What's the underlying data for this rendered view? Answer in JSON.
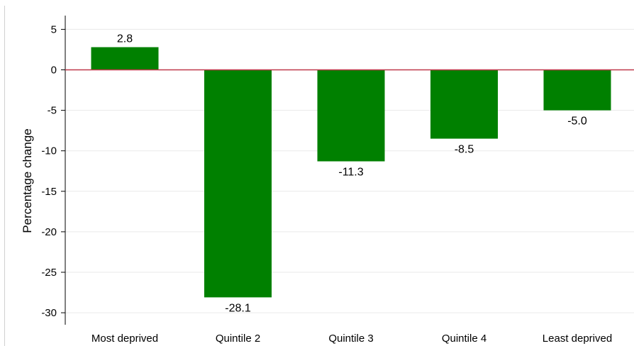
{
  "chart_data": {
    "type": "bar",
    "title": "",
    "xlabel": "",
    "ylabel": "Percentage change",
    "categories": [
      "Most deprived",
      "Quintile 2",
      "Quintile 3",
      "Quintile 4",
      "Least deprived"
    ],
    "values": [
      2.8,
      -28.1,
      -11.3,
      -8.5,
      -5.0
    ],
    "data_labels": [
      "2.8",
      "-28.1",
      "-11.3",
      "-8.5",
      "-5.0"
    ],
    "y_ticks": [
      5,
      0,
      -5,
      -10,
      -15,
      -20,
      -25,
      -30
    ],
    "ylim": [
      -31.5,
      6.5
    ],
    "bar_color": "#008000",
    "zero_line_color": "#c0394b",
    "grid": true,
    "legend": "none"
  }
}
